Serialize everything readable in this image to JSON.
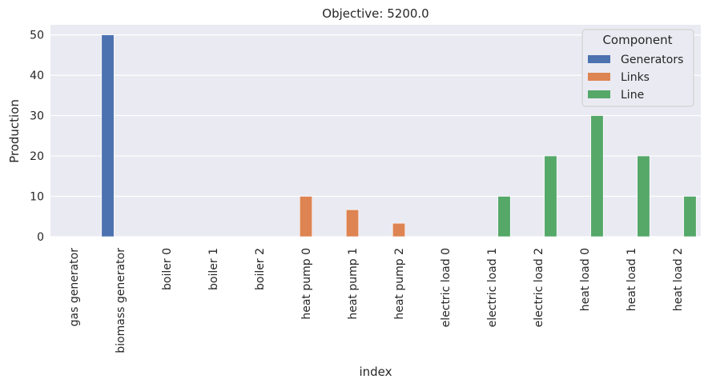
{
  "chart_data": {
    "type": "bar",
    "title": "Objective: 5200.0",
    "xlabel": "index",
    "ylabel": "Production",
    "ylim": [
      0,
      52.5
    ],
    "yticks": [
      0,
      10,
      20,
      30,
      40,
      50
    ],
    "grid": true,
    "legend": {
      "title": "Component",
      "placement": "top-right"
    },
    "categories": [
      "gas generator",
      "biomass generator",
      "boiler 0",
      "boiler 1",
      "boiler 2",
      "heat pump 0",
      "heat pump 1",
      "heat pump 2",
      "electric load 0",
      "electric load 1",
      "electric load 2",
      "heat load 0",
      "heat load 1",
      "heat load 2"
    ],
    "series": [
      {
        "name": "Generators",
        "color": "#4c72b0",
        "values": [
          0,
          50,
          null,
          null,
          null,
          null,
          null,
          null,
          null,
          null,
          null,
          null,
          null,
          null
        ]
      },
      {
        "name": "Links",
        "color": "#dd8452",
        "values": [
          null,
          null,
          0,
          0,
          0,
          10,
          6.67,
          3.33,
          null,
          null,
          null,
          null,
          null,
          null
        ]
      },
      {
        "name": "Line",
        "color": "#55a868",
        "values": [
          null,
          null,
          null,
          null,
          null,
          null,
          null,
          null,
          0,
          10,
          20,
          30,
          20,
          10
        ]
      }
    ]
  }
}
